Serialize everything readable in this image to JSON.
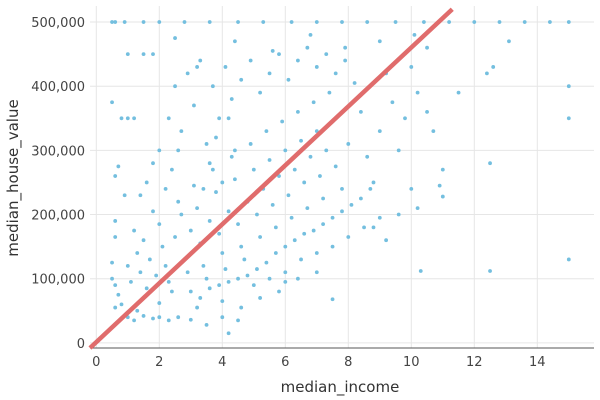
{
  "chart_data": {
    "type": "scatter",
    "title": "",
    "xlabel": "median_income",
    "ylabel": "median_house_value",
    "xlim": [
      -0.2,
      15.8
    ],
    "ylim": [
      -8000,
      525000
    ],
    "x_ticks": [
      0,
      2,
      4,
      6,
      8,
      10,
      12,
      14
    ],
    "x_tick_labels": [
      "0",
      "2",
      "4",
      "6",
      "8",
      "10",
      "12",
      "14"
    ],
    "y_ticks": [
      0,
      100000,
      200000,
      300000,
      400000,
      500000
    ],
    "y_tick_labels": [
      "0",
      "100,000",
      "200,000",
      "300,000",
      "400,000",
      "500,000"
    ],
    "grid": true,
    "series": [
      {
        "kind": "points",
        "color": "#74bfdf",
        "points": [
          [
            0.5,
            500001
          ],
          [
            0.6,
            500001
          ],
          [
            0.9,
            500001
          ],
          [
            1.5,
            500001
          ],
          [
            2.0,
            500001
          ],
          [
            2.8,
            500001
          ],
          [
            3.6,
            500001
          ],
          [
            4.5,
            500001
          ],
          [
            5.3,
            500001
          ],
          [
            6.2,
            500001
          ],
          [
            7.0,
            500001
          ],
          [
            7.8,
            500001
          ],
          [
            8.6,
            500001
          ],
          [
            9.5,
            500001
          ],
          [
            10.4,
            500001
          ],
          [
            11.2,
            500001
          ],
          [
            12.0,
            500001
          ],
          [
            12.8,
            500001
          ],
          [
            13.6,
            500001
          ],
          [
            14.4,
            500001
          ],
          [
            15.0,
            500001
          ],
          [
            1.0,
            450000
          ],
          [
            1.5,
            450000
          ],
          [
            1.8,
            450000
          ],
          [
            2.5,
            475000
          ],
          [
            3.2,
            430000
          ],
          [
            4.4,
            470000
          ],
          [
            5.6,
            455000
          ],
          [
            6.8,
            480000
          ],
          [
            7.9,
            460000
          ],
          [
            9.0,
            470000
          ],
          [
            10.1,
            480000
          ],
          [
            10.5,
            460000
          ],
          [
            11.5,
            390000
          ],
          [
            12.4,
            420000
          ],
          [
            12.6,
            430000
          ],
          [
            13.1,
            470000
          ],
          [
            15.0,
            400000
          ],
          [
            15.0,
            350000
          ],
          [
            12.5,
            280000
          ],
          [
            12.5,
            112000
          ],
          [
            15.0,
            130000
          ],
          [
            10.3,
            112000
          ],
          [
            10.2,
            210000
          ],
          [
            10.9,
            245000
          ],
          [
            11.0,
            228000
          ],
          [
            10.0,
            240000
          ],
          [
            7.5,
            68000
          ],
          [
            9.2,
            160000
          ],
          [
            8.8,
            180000
          ],
          [
            9.6,
            200000
          ],
          [
            10.7,
            330000
          ],
          [
            11.0,
            270000
          ],
          [
            0.5,
            375000
          ],
          [
            0.8,
            350000
          ],
          [
            1.0,
            350000
          ],
          [
            1.2,
            350000
          ],
          [
            0.6,
            260000
          ],
          [
            0.7,
            275000
          ],
          [
            0.9,
            230000
          ],
          [
            0.6,
            190000
          ],
          [
            0.6,
            165000
          ],
          [
            0.5,
            125000
          ],
          [
            0.5,
            100000
          ],
          [
            0.6,
            90000
          ],
          [
            0.7,
            75000
          ],
          [
            0.6,
            55000
          ],
          [
            0.8,
            60000
          ],
          [
            1.0,
            40000
          ],
          [
            1.2,
            35000
          ],
          [
            1.3,
            50000
          ],
          [
            1.5,
            42000
          ],
          [
            1.8,
            38000
          ],
          [
            2.0,
            40000
          ],
          [
            2.3,
            35000
          ],
          [
            2.6,
            40000
          ],
          [
            3.0,
            36000
          ],
          [
            3.5,
            28000
          ],
          [
            4.2,
            15000
          ],
          [
            4.5,
            35000
          ],
          [
            2.0,
            62000
          ],
          [
            3.2,
            55000
          ],
          [
            4.0,
            65000
          ],
          [
            1.0,
            120000
          ],
          [
            1.1,
            95000
          ],
          [
            1.3,
            140000
          ],
          [
            1.2,
            175000
          ],
          [
            1.5,
            160000
          ],
          [
            1.4,
            110000
          ],
          [
            1.6,
            85000
          ],
          [
            1.7,
            130000
          ],
          [
            1.9,
            105000
          ],
          [
            1.8,
            205000
          ],
          [
            2.0,
            185000
          ],
          [
            2.1,
            150000
          ],
          [
            2.2,
            120000
          ],
          [
            2.3,
            95000
          ],
          [
            2.4,
            80000
          ],
          [
            2.5,
            165000
          ],
          [
            2.6,
            220000
          ],
          [
            2.7,
            200000
          ],
          [
            2.8,
            130000
          ],
          [
            2.9,
            110000
          ],
          [
            3.0,
            175000
          ],
          [
            3.1,
            245000
          ],
          [
            3.2,
            210000
          ],
          [
            3.3,
            155000
          ],
          [
            3.4,
            120000
          ],
          [
            3.5,
            100000
          ],
          [
            3.6,
            190000
          ],
          [
            3.7,
            270000
          ],
          [
            3.8,
            235000
          ],
          [
            3.9,
            170000
          ],
          [
            4.0,
            140000
          ],
          [
            4.1,
            115000
          ],
          [
            4.2,
            205000
          ],
          [
            4.3,
            290000
          ],
          [
            4.4,
            255000
          ],
          [
            4.5,
            185000
          ],
          [
            4.6,
            150000
          ],
          [
            4.7,
            130000
          ],
          [
            4.8,
            220000
          ],
          [
            4.9,
            310000
          ],
          [
            5.0,
            270000
          ],
          [
            5.1,
            200000
          ],
          [
            5.2,
            165000
          ],
          [
            5.3,
            240000
          ],
          [
            5.4,
            330000
          ],
          [
            5.5,
            285000
          ],
          [
            5.6,
            215000
          ],
          [
            5.7,
            180000
          ],
          [
            5.8,
            260000
          ],
          [
            5.9,
            345000
          ],
          [
            6.0,
            300000
          ],
          [
            6.1,
            230000
          ],
          [
            6.2,
            195000
          ],
          [
            6.3,
            270000
          ],
          [
            6.4,
            360000
          ],
          [
            6.5,
            315000
          ],
          [
            6.6,
            250000
          ],
          [
            6.7,
            210000
          ],
          [
            6.8,
            290000
          ],
          [
            6.9,
            375000
          ],
          [
            7.0,
            330000
          ],
          [
            7.1,
            260000
          ],
          [
            7.2,
            225000
          ],
          [
            7.3,
            300000
          ],
          [
            7.4,
            390000
          ],
          [
            7.5,
            345000
          ],
          [
            7.6,
            275000
          ],
          [
            7.8,
            240000
          ],
          [
            8.0,
            310000
          ],
          [
            8.2,
            405000
          ],
          [
            8.4,
            360000
          ],
          [
            8.6,
            290000
          ],
          [
            8.8,
            250000
          ],
          [
            9.0,
            330000
          ],
          [
            9.2,
            420000
          ],
          [
            9.4,
            375000
          ],
          [
            9.6,
            300000
          ],
          [
            9.8,
            350000
          ],
          [
            10.0,
            430000
          ],
          [
            10.2,
            390000
          ],
          [
            10.5,
            360000
          ],
          [
            2.0,
            300000
          ],
          [
            2.3,
            350000
          ],
          [
            2.5,
            400000
          ],
          [
            2.7,
            330000
          ],
          [
            2.9,
            420000
          ],
          [
            3.1,
            370000
          ],
          [
            3.3,
            440000
          ],
          [
            3.5,
            310000
          ],
          [
            3.7,
            400000
          ],
          [
            3.9,
            350000
          ],
          [
            4.1,
            430000
          ],
          [
            4.3,
            380000
          ],
          [
            4.6,
            410000
          ],
          [
            4.9,
            440000
          ],
          [
            5.2,
            390000
          ],
          [
            5.5,
            420000
          ],
          [
            5.8,
            450000
          ],
          [
            6.1,
            410000
          ],
          [
            6.4,
            440000
          ],
          [
            6.7,
            460000
          ],
          [
            7.0,
            430000
          ],
          [
            7.3,
            450000
          ],
          [
            7.6,
            420000
          ],
          [
            7.9,
            440000
          ],
          [
            3.4,
            240000
          ],
          [
            3.6,
            280000
          ],
          [
            3.8,
            320000
          ],
          [
            4.0,
            250000
          ],
          [
            4.2,
            350000
          ],
          [
            4.4,
            300000
          ],
          [
            3.0,
            80000
          ],
          [
            3.3,
            70000
          ],
          [
            3.6,
            85000
          ],
          [
            3.9,
            90000
          ],
          [
            4.2,
            95000
          ],
          [
            4.5,
            100000
          ],
          [
            4.8,
            105000
          ],
          [
            5.1,
            115000
          ],
          [
            5.4,
            125000
          ],
          [
            5.7,
            140000
          ],
          [
            6.0,
            150000
          ],
          [
            6.3,
            160000
          ],
          [
            6.6,
            170000
          ],
          [
            6.9,
            175000
          ],
          [
            7.2,
            185000
          ],
          [
            7.5,
            195000
          ],
          [
            7.8,
            205000
          ],
          [
            8.1,
            215000
          ],
          [
            8.4,
            225000
          ],
          [
            8.7,
            240000
          ],
          [
            5.0,
            90000
          ],
          [
            5.5,
            100000
          ],
          [
            6.0,
            110000
          ],
          [
            6.5,
            130000
          ],
          [
            7.0,
            140000
          ],
          [
            7.5,
            150000
          ],
          [
            8.0,
            165000
          ],
          [
            8.5,
            180000
          ],
          [
            9.0,
            195000
          ],
          [
            6.0,
            95000
          ],
          [
            4.0,
            40000
          ],
          [
            4.6,
            55000
          ],
          [
            5.2,
            70000
          ],
          [
            5.8,
            80000
          ],
          [
            6.4,
            100000
          ],
          [
            7.0,
            110000
          ],
          [
            2.4,
            270000
          ],
          [
            2.6,
            300000
          ],
          [
            1.6,
            250000
          ],
          [
            1.8,
            280000
          ],
          [
            2.2,
            240000
          ],
          [
            1.4,
            230000
          ]
        ]
      },
      {
        "kind": "line",
        "color": "#e06c6c",
        "points": [
          [
            -0.2,
            -8000
          ],
          [
            11.3,
            520000
          ]
        ]
      }
    ]
  }
}
